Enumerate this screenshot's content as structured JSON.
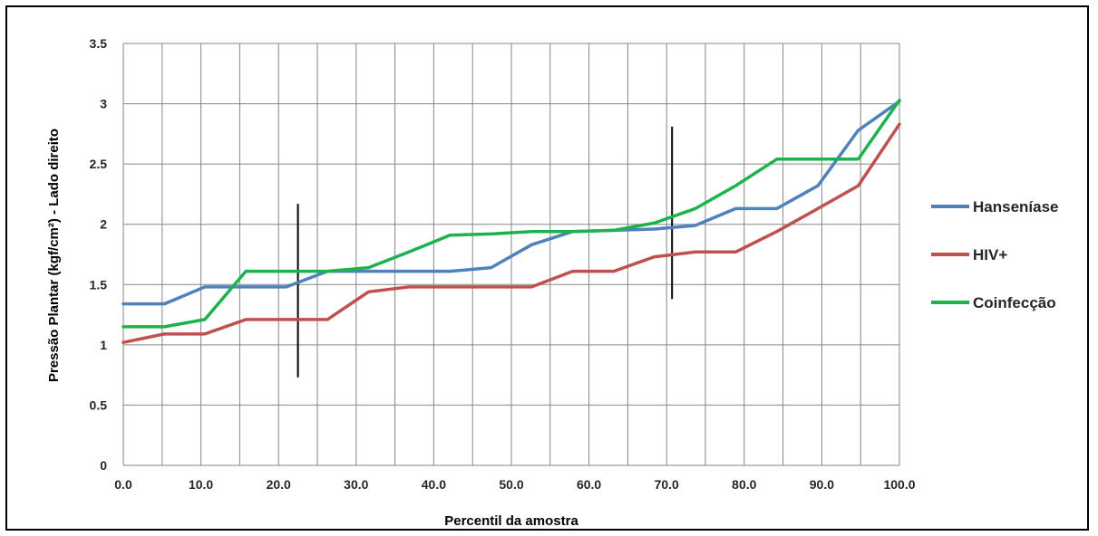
{
  "chart_data": {
    "type": "line",
    "xlabel": "Percentil da amostra",
    "ylabel": "Pressão Plantar (kgf/cm²) - Lado direito",
    "xlim": [
      0,
      100
    ],
    "ylim": [
      0,
      3.5
    ],
    "x_ticks": [
      "0.0",
      "10.0",
      "20.0",
      "30.0",
      "40.0",
      "50.0",
      "60.0",
      "70.0",
      "80.0",
      "90.0",
      "100.0"
    ],
    "y_ticks": [
      "0",
      "0.5",
      "1",
      "1.5",
      "2",
      "2.5",
      "3",
      "3.5"
    ],
    "grid": true,
    "legend_position": "right",
    "series": [
      {
        "name": "Hanseníase",
        "color": "#4f81bd",
        "x": [
          0,
          5.3,
          10.5,
          15.8,
          21,
          26.3,
          31.6,
          36.8,
          42.1,
          47.4,
          52.6,
          57.9,
          63.2,
          68.4,
          73.7,
          78.9,
          84.2,
          89.5,
          94.7,
          100
        ],
        "values": [
          1.34,
          1.34,
          1.48,
          1.48,
          1.48,
          1.61,
          1.61,
          1.61,
          1.61,
          1.64,
          1.83,
          1.94,
          1.95,
          1.96,
          1.99,
          2.13,
          2.13,
          2.32,
          2.78,
          3.02
        ]
      },
      {
        "name": "HIV+",
        "color": "#c0504d",
        "x": [
          0,
          5.3,
          10.5,
          15.8,
          21,
          26.3,
          31.6,
          36.8,
          42.1,
          47.4,
          52.6,
          57.9,
          63.2,
          68.4,
          73.7,
          78.9,
          84.2,
          89.5,
          94.7,
          100
        ],
        "values": [
          1.02,
          1.09,
          1.09,
          1.21,
          1.21,
          1.21,
          1.44,
          1.48,
          1.48,
          1.48,
          1.48,
          1.61,
          1.61,
          1.73,
          1.77,
          1.77,
          1.94,
          2.13,
          2.32,
          2.83
        ]
      },
      {
        "name": "Coinfecção",
        "color": "#1db34c",
        "x": [
          0,
          5.3,
          10.5,
          15.8,
          21,
          26.3,
          31.6,
          36.8,
          42.1,
          47.4,
          52.6,
          57.9,
          63.2,
          68.4,
          73.7,
          78.9,
          84.2,
          89.5,
          94.7,
          100
        ],
        "values": [
          1.15,
          1.15,
          1.21,
          1.61,
          1.61,
          1.61,
          1.64,
          1.77,
          1.91,
          1.92,
          1.94,
          1.94,
          1.95,
          2.01,
          2.13,
          2.32,
          2.54,
          2.54,
          2.54,
          3.03
        ]
      }
    ],
    "annotations": [
      {
        "type": "vertical-line",
        "x": 22.5,
        "y_from": 0.73,
        "y_to": 2.17
      },
      {
        "type": "vertical-line",
        "x": 70.7,
        "y_from": 1.38,
        "y_to": 2.81
      }
    ]
  }
}
